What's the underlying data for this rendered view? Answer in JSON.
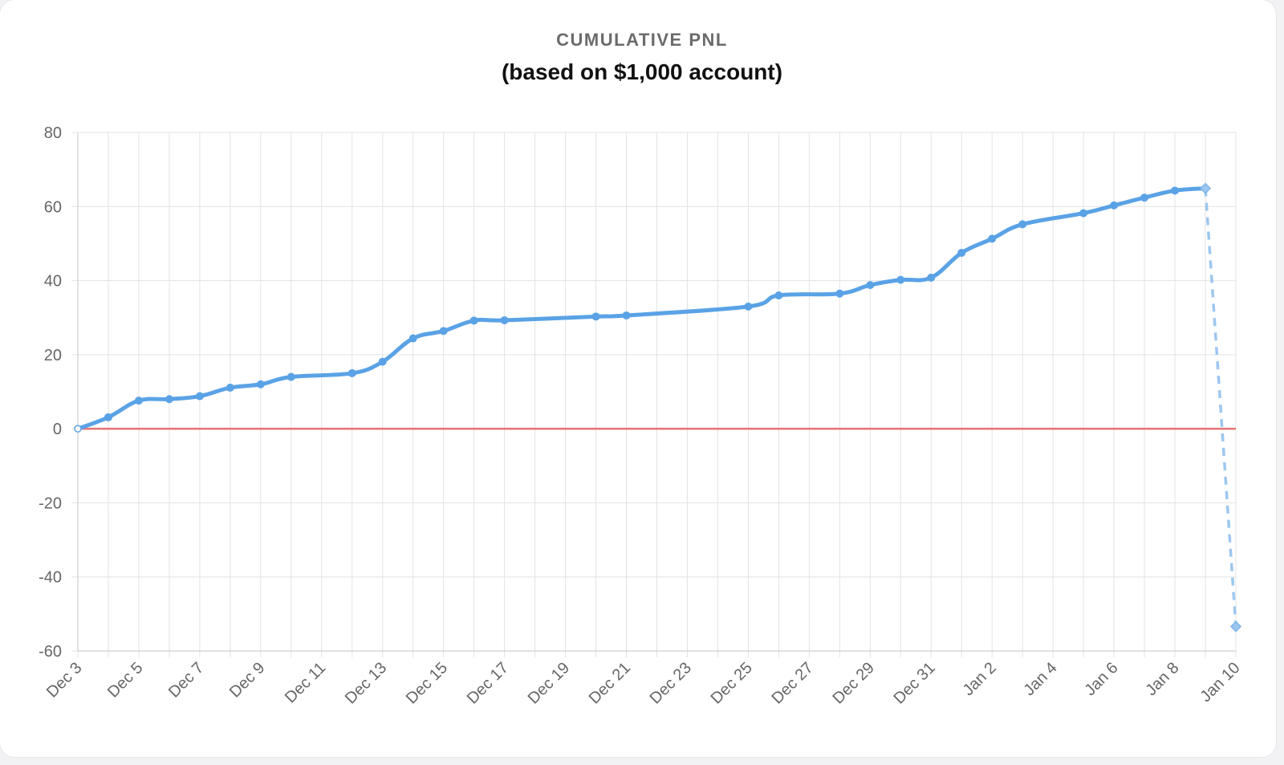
{
  "chart_data": {
    "type": "line",
    "title": "CUMULATIVE PNL",
    "subtitle": "(based on $1,000 account)",
    "xlabel": "",
    "ylabel": "",
    "ylim": [
      -60,
      80
    ],
    "y_ticks": [
      80,
      60,
      40,
      20,
      0,
      -20,
      -40,
      -60
    ],
    "x_range": [
      "2023-12-03",
      "2024-01-10"
    ],
    "x_ticks": [
      {
        "date": "2023-12-03",
        "label": "Dec 3"
      },
      {
        "date": "2023-12-05",
        "label": "Dec 5"
      },
      {
        "date": "2023-12-07",
        "label": "Dec 7"
      },
      {
        "date": "2023-12-09",
        "label": "Dec 9"
      },
      {
        "date": "2023-12-11",
        "label": "Dec 11"
      },
      {
        "date": "2023-12-13",
        "label": "Dec 13"
      },
      {
        "date": "2023-12-15",
        "label": "Dec 15"
      },
      {
        "date": "2023-12-17",
        "label": "Dec 17"
      },
      {
        "date": "2023-12-19",
        "label": "Dec 19"
      },
      {
        "date": "2023-12-21",
        "label": "Dec 21"
      },
      {
        "date": "2023-12-23",
        "label": "Dec 23"
      },
      {
        "date": "2023-12-25",
        "label": "Dec 25"
      },
      {
        "date": "2023-12-27",
        "label": "Dec 27"
      },
      {
        "date": "2023-12-29",
        "label": "Dec 29"
      },
      {
        "date": "2023-12-31",
        "label": "Dec 31"
      },
      {
        "date": "2024-01-02",
        "label": "Jan 2"
      },
      {
        "date": "2024-01-04",
        "label": "Jan 4"
      },
      {
        "date": "2024-01-06",
        "label": "Jan 6"
      },
      {
        "date": "2024-01-08",
        "label": "Jan 8"
      },
      {
        "date": "2024-01-10",
        "label": "Jan 10"
      }
    ],
    "grid": true,
    "zero_line_color": "#e57373",
    "series": [
      {
        "style": "solid",
        "color": "#5aa2e6",
        "points": [
          {
            "x": "2023-12-03",
            "y": 0.0
          },
          {
            "x": "2023-12-04",
            "y": 3.1
          },
          {
            "x": "2023-12-05",
            "y": 7.6
          },
          {
            "x": "2023-12-06",
            "y": 8.0
          },
          {
            "x": "2023-12-07",
            "y": 8.8
          },
          {
            "x": "2023-12-08",
            "y": 11.1
          },
          {
            "x": "2023-12-09",
            "y": 12.0
          },
          {
            "x": "2023-12-10",
            "y": 14.0
          },
          {
            "x": "2023-12-12",
            "y": 15.0
          },
          {
            "x": "2023-12-13",
            "y": 18.1
          },
          {
            "x": "2023-12-14",
            "y": 24.4
          },
          {
            "x": "2023-12-15",
            "y": 26.4
          },
          {
            "x": "2023-12-16",
            "y": 29.2
          },
          {
            "x": "2023-12-17",
            "y": 29.3
          },
          {
            "x": "2023-12-20",
            "y": 30.3
          },
          {
            "x": "2023-12-21",
            "y": 30.6
          },
          {
            "x": "2023-12-25",
            "y": 33.0
          },
          {
            "x": "2023-12-26",
            "y": 36.0
          },
          {
            "x": "2023-12-28",
            "y": 36.5
          },
          {
            "x": "2023-12-29",
            "y": 38.8
          },
          {
            "x": "2023-12-30",
            "y": 40.2
          },
          {
            "x": "2023-12-31",
            "y": 40.8
          },
          {
            "x": "2024-01-01",
            "y": 47.5
          },
          {
            "x": "2024-01-02",
            "y": 51.3
          },
          {
            "x": "2024-01-03",
            "y": 55.2
          },
          {
            "x": "2024-01-05",
            "y": 58.2
          },
          {
            "x": "2024-01-06",
            "y": 60.3
          },
          {
            "x": "2024-01-07",
            "y": 62.4
          },
          {
            "x": "2024-01-08",
            "y": 64.3
          },
          {
            "x": "2024-01-09",
            "y": 64.9
          }
        ]
      },
      {
        "style": "dashed",
        "color": "#9cc7ef",
        "points": [
          {
            "x": "2024-01-09",
            "y": 64.9
          },
          {
            "x": "2024-01-10",
            "y": -53.4
          }
        ]
      }
    ]
  }
}
